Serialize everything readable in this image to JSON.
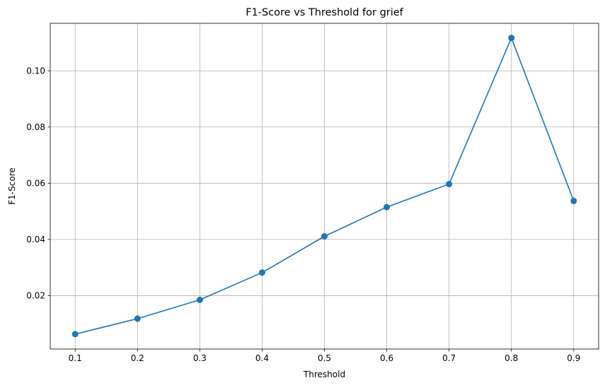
{
  "chart_data": {
    "type": "line",
    "title": "F1-Score vs Threshold for grief",
    "xlabel": "Threshold",
    "ylabel": "F1-Score",
    "x": [
      0.1,
      0.2,
      0.3,
      0.4,
      0.5,
      0.6,
      0.7,
      0.8,
      0.9
    ],
    "series": [
      {
        "values": [
          0.0063,
          0.0118,
          0.0185,
          0.0282,
          0.0411,
          0.0515,
          0.0597,
          0.1117,
          0.0537
        ],
        "color": "#1f77b4",
        "marker": "circle"
      }
    ],
    "x_ticks": [
      "0.1",
      "0.2",
      "0.3",
      "0.4",
      "0.5",
      "0.6",
      "0.7",
      "0.8",
      "0.9"
    ],
    "y_ticks": [
      "0.02",
      "0.04",
      "0.06",
      "0.08",
      "0.10"
    ],
    "xlim": [
      0.06,
      0.94
    ],
    "ylim": [
      0.001,
      0.1169
    ],
    "grid": true,
    "legend": "none"
  }
}
